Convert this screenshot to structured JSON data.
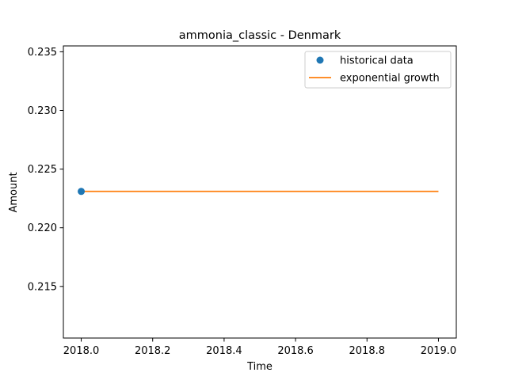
{
  "chart_data": {
    "type": "line",
    "title": "ammonia_classic - Denmark",
    "xlabel": "Time",
    "ylabel": "Amount",
    "xlim": [
      2017.95,
      2019.05
    ],
    "ylim": [
      0.2106,
      0.2355
    ],
    "x_ticks": [
      2018.0,
      2018.2,
      2018.4,
      2018.6,
      2018.8,
      2019.0
    ],
    "x_tick_labels": [
      "2018.0",
      "2018.2",
      "2018.4",
      "2018.6",
      "2018.8",
      "2019.0"
    ],
    "y_ticks": [
      0.215,
      0.22,
      0.225,
      0.23,
      0.235
    ],
    "y_tick_labels": [
      "0.215",
      "0.220",
      "0.225",
      "0.230",
      "0.235"
    ],
    "grid": false,
    "legend_position": "top-right",
    "series": [
      {
        "name": "historical data",
        "kind": "scatter",
        "color": "#1f77b4",
        "x": [
          2018.0
        ],
        "y": [
          0.2231
        ]
      },
      {
        "name": "exponential growth",
        "kind": "line",
        "color": "#ff7f0e",
        "x": [
          2018.0,
          2019.0
        ],
        "y": [
          0.2231,
          0.2231
        ]
      }
    ]
  }
}
